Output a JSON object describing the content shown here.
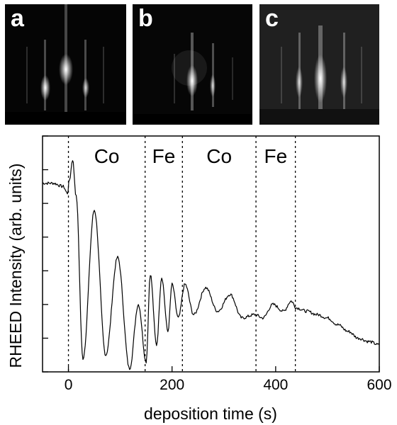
{
  "panels": [
    {
      "label": "a"
    },
    {
      "label": "b"
    },
    {
      "label": "c"
    }
  ],
  "chart_data": {
    "type": "line",
    "title": "",
    "xlabel": "deposition time (s)",
    "ylabel": "RHEED Intensity (arb. units)",
    "xlim": [
      -50,
      600
    ],
    "ylim": [
      0,
      7
    ],
    "xticks": [
      0,
      200,
      400,
      600
    ],
    "xtick_labels": [
      "0",
      "200",
      "400",
      "600"
    ],
    "yticks_unlabeled": [
      0,
      1,
      2,
      3,
      4,
      5,
      6,
      7
    ],
    "grid": false,
    "legend": "none",
    "boundaries": [
      0,
      148,
      220,
      362,
      438
    ],
    "region_labels": [
      {
        "text": "Co",
        "x_center": 74
      },
      {
        "text": "Fe",
        "x_center": 184
      },
      {
        "text": "Co",
        "x_center": 291
      },
      {
        "text": "Fe",
        "x_center": 400
      }
    ],
    "series": [
      {
        "x": [
          -50,
          -30,
          -10,
          -2,
          2,
          8,
          15,
          28,
          50,
          72,
          95,
          118,
          135,
          150,
          158,
          170,
          180,
          192,
          200,
          212,
          225,
          242,
          265,
          288,
          312,
          335,
          360,
          375,
          395,
          415,
          430,
          440,
          460,
          480,
          500,
          520,
          540,
          560,
          580,
          600
        ],
        "y": [
          5.6,
          5.6,
          5.5,
          5.3,
          5.7,
          6.3,
          5.2,
          0.4,
          4.8,
          0.5,
          3.4,
          0.1,
          2.0,
          0.3,
          2.9,
          0.8,
          2.8,
          1.2,
          2.6,
          1.6,
          2.6,
          1.7,
          2.5,
          1.8,
          2.3,
          1.6,
          1.7,
          1.6,
          2.0,
          1.8,
          2.1,
          1.9,
          1.8,
          1.7,
          1.6,
          1.4,
          1.2,
          1.0,
          0.9,
          0.8
        ]
      }
    ]
  }
}
